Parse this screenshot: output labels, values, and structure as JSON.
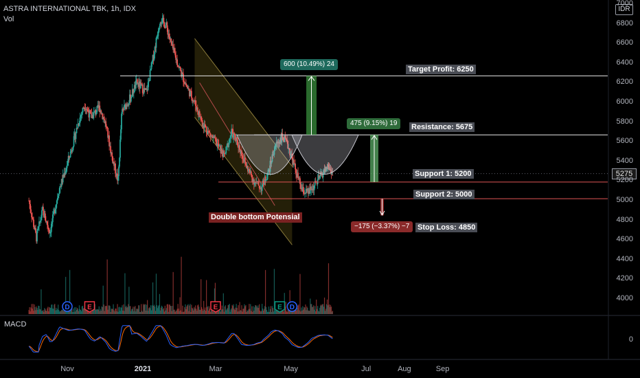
{
  "header": {
    "title": "ASTRA INTERNATIONAL TBK, 1h, IDX",
    "vol_label": "Vol",
    "currency": "IDR",
    "current_price": "5275"
  },
  "macd": {
    "label": "MACD",
    "zero_label": "0"
  },
  "chart_data": {
    "type": "candlestick",
    "title": "ASTRA INTERNATIONAL TBK, 1h, IDX",
    "y_ticks": [
      4000,
      4200,
      4400,
      4600,
      4800,
      5000,
      5200,
      5400,
      5600,
      5800,
      6000,
      6200,
      6400,
      6600,
      6800,
      7000
    ],
    "x_ticks": [
      "Nov",
      "2021",
      "Mar",
      "May",
      "Jul",
      "Aug",
      "Sep"
    ],
    "ylim": [
      3950,
      7020
    ],
    "price_path": [
      [
        "2020-10-01",
        5000
      ],
      [
        "2020-10-07",
        4620
      ],
      [
        "2020-10-12",
        4900
      ],
      [
        "2020-10-18",
        4680
      ],
      [
        "2020-10-25",
        5100
      ],
      [
        "2020-10-29",
        5250
      ],
      [
        "2020-11-05",
        5550
      ],
      [
        "2020-11-10",
        5800
      ],
      [
        "2020-11-15",
        5980
      ],
      [
        "2020-11-20",
        5850
      ],
      [
        "2020-11-27",
        5950
      ],
      [
        "2020-12-02",
        5780
      ],
      [
        "2020-12-07",
        5450
      ],
      [
        "2020-12-12",
        5200
      ],
      [
        "2020-12-15",
        5900
      ],
      [
        "2020-12-22",
        6050
      ],
      [
        "2020-12-27",
        6200
      ],
      [
        "2021-01-04",
        6100
      ],
      [
        "2021-01-10",
        6500
      ],
      [
        "2021-01-15",
        6850
      ],
      [
        "2021-01-20",
        6780
      ],
      [
        "2021-01-25",
        6550
      ],
      [
        "2021-02-01",
        6300
      ],
      [
        "2021-02-06",
        6150
      ],
      [
        "2021-02-12",
        6000
      ],
      [
        "2021-02-18",
        5800
      ],
      [
        "2021-02-24",
        5680
      ],
      [
        "2021-03-02",
        5580
      ],
      [
        "2021-03-08",
        5450
      ],
      [
        "2021-03-14",
        5700
      ],
      [
        "2021-03-20",
        5550
      ],
      [
        "2021-03-26",
        5350
      ],
      [
        "2021-04-01",
        5200
      ],
      [
        "2021-04-07",
        5130
      ],
      [
        "2021-04-13",
        5300
      ],
      [
        "2021-04-18",
        5550
      ],
      [
        "2021-04-24",
        5650
      ],
      [
        "2021-04-29",
        5550
      ],
      [
        "2021-05-05",
        5300
      ],
      [
        "2021-05-10",
        5100
      ],
      [
        "2021-05-15",
        5080
      ],
      [
        "2021-05-20",
        5150
      ],
      [
        "2021-05-25",
        5250
      ],
      [
        "2021-05-31",
        5350
      ],
      [
        "2021-06-04",
        5280
      ]
    ],
    "levels": [
      {
        "name": "Target Profit",
        "label": "Target Profit: 6250",
        "value": 6270,
        "color": "#e8e8e8"
      },
      {
        "name": "Resistance",
        "label": "Resistance: 5675",
        "value": 5670,
        "color": "#e8e8e8"
      },
      {
        "name": "Support 1",
        "label": "Support 1: 5200",
        "value": 5190,
        "color": "#e05555"
      },
      {
        "name": "Support 2",
        "label": "Support 2: 5000",
        "value": 5020,
        "color": "#e05555"
      },
      {
        "name": "Stop Loss",
        "label": "Stop Loss: 4850",
        "value": 4850
      }
    ],
    "measures": [
      {
        "label": "600 (10.49%) 24",
        "color": "#1e6a5d"
      },
      {
        "label": "475 (9.15%) 19",
        "color": "#2e6b3a"
      },
      {
        "label": "−175 (−3.37%) −7",
        "color": "#8a2a2a"
      }
    ],
    "annotation": "Double bottom Potensial",
    "event_markers": [
      {
        "letter": "D",
        "date": "2020-11-01",
        "color": "#2962ff"
      },
      {
        "letter": "E",
        "date": "2020-11-19",
        "color": "#f23645"
      },
      {
        "letter": "E",
        "date": "2021-03-01",
        "color": "#f23645"
      },
      {
        "letter": "E",
        "date": "2021-04-22",
        "color": "#089981"
      },
      {
        "letter": "D",
        "date": "2021-05-02",
        "color": "#2962ff"
      }
    ],
    "colors": {
      "up": "#26a69a",
      "down": "#ef5350",
      "macd": "#2962ff",
      "signal": "#ff6d00"
    }
  }
}
